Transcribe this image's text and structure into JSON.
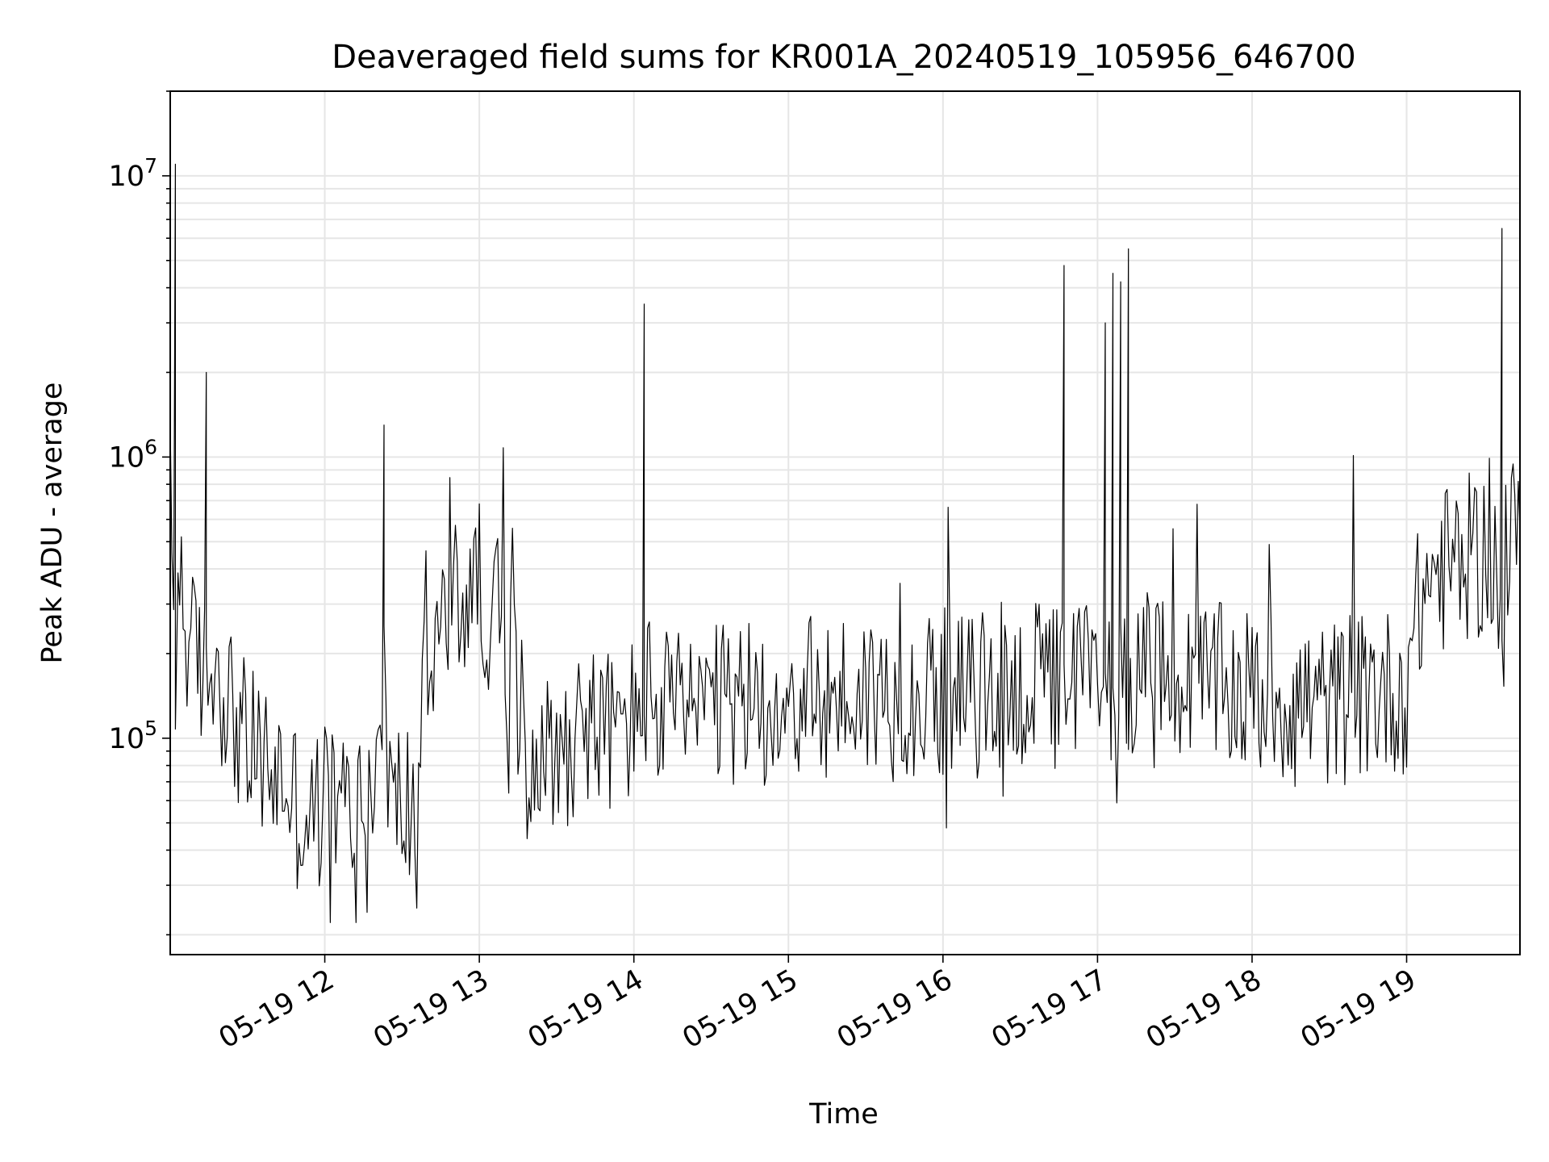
{
  "chart_data": {
    "type": "line",
    "title": "Deaveraged field sums for KR001A_20240519_105956_646700",
    "xlabel": "Time",
    "ylabel": "Peak ADU - average",
    "y_scale": "log",
    "grid": true,
    "ylim": [
      17000,
      20000000
    ],
    "xlim": [
      "2024-05-19 11:00",
      "2024-05-19 19:44"
    ],
    "x_tick_values": [
      "2024-05-19 12:00",
      "2024-05-19 13:00",
      "2024-05-19 14:00",
      "2024-05-19 15:00",
      "2024-05-19 16:00",
      "2024-05-19 17:00",
      "2024-05-19 18:00",
      "2024-05-19 19:00"
    ],
    "x_tick_labels": [
      "05-19 12",
      "05-19 13",
      "05-19 14",
      "05-19 15",
      "05-19 16",
      "05-19 17",
      "05-19 18",
      "05-19 19"
    ],
    "y_tick_values": [
      100000,
      1000000,
      10000000
    ],
    "y_tick_labels": [
      {
        "base": "10",
        "exp": "5"
      },
      {
        "base": "10",
        "exp": "6"
      },
      {
        "base": "10",
        "exp": "7"
      }
    ],
    "line_color": "#000000",
    "series": [
      {
        "x": [
          "2024-05-19 11:00",
          "2024-05-19 11:02",
          "2024-05-19 11:03",
          "2024-05-19 11:05",
          "2024-05-19 11:08",
          "2024-05-19 11:12",
          "2024-05-19 11:14",
          "2024-05-19 11:16",
          "2024-05-19 11:20",
          "2024-05-19 11:25",
          "2024-05-19 11:30",
          "2024-05-19 11:35",
          "2024-05-19 11:40",
          "2024-05-19 11:45",
          "2024-05-19 11:50",
          "2024-05-19 11:55",
          "2024-05-19 12:00",
          "2024-05-19 12:05",
          "2024-05-19 12:10",
          "2024-05-19 12:15",
          "2024-05-19 12:20",
          "2024-05-19 12:23",
          "2024-05-19 12:26",
          "2024-05-19 12:30",
          "2024-05-19 12:35",
          "2024-05-19 12:40",
          "2024-05-19 12:45",
          "2024-05-19 12:50",
          "2024-05-19 12:55",
          "2024-05-19 13:00",
          "2024-05-19 13:05",
          "2024-05-19 13:10",
          "2024-05-19 13:15",
          "2024-05-19 13:20",
          "2024-05-19 13:25",
          "2024-05-19 13:30",
          "2024-05-19 13:35",
          "2024-05-19 13:40",
          "2024-05-19 13:45",
          "2024-05-19 13:50",
          "2024-05-19 13:55",
          "2024-05-19 14:00",
          "2024-05-19 14:04",
          "2024-05-19 14:10",
          "2024-05-19 14:20",
          "2024-05-19 14:30",
          "2024-05-19 14:40",
          "2024-05-19 14:50",
          "2024-05-19 15:00",
          "2024-05-19 15:10",
          "2024-05-19 15:20",
          "2024-05-19 15:30",
          "2024-05-19 15:40",
          "2024-05-19 15:50",
          "2024-05-19 16:00",
          "2024-05-19 16:10",
          "2024-05-19 16:20",
          "2024-05-19 16:30",
          "2024-05-19 16:40",
          "2024-05-19 16:47",
          "2024-05-19 16:50",
          "2024-05-19 16:55",
          "2024-05-19 17:00",
          "2024-05-19 17:03",
          "2024-05-19 17:06",
          "2024-05-19 17:09",
          "2024-05-19 17:12",
          "2024-05-19 17:15",
          "2024-05-19 17:20",
          "2024-05-19 17:30",
          "2024-05-19 17:40",
          "2024-05-19 17:50",
          "2024-05-19 18:00",
          "2024-05-19 18:10",
          "2024-05-19 18:20",
          "2024-05-19 18:30",
          "2024-05-19 18:40",
          "2024-05-19 18:50",
          "2024-05-19 19:00",
          "2024-05-19 19:05",
          "2024-05-19 19:10",
          "2024-05-19 19:15",
          "2024-05-19 19:20",
          "2024-05-19 19:25",
          "2024-05-19 19:30",
          "2024-05-19 19:35",
          "2024-05-19 19:37",
          "2024-05-19 19:40",
          "2024-05-19 19:44"
        ],
        "y": [
          700000,
          11000000,
          450000,
          300000,
          200000,
          180000,
          2000000,
          200000,
          160000,
          120000,
          90000,
          85000,
          75000,
          70000,
          55000,
          50000,
          60000,
          58000,
          55000,
          60000,
          65000,
          1300000,
          60000,
          58000,
          60000,
          180000,
          250000,
          300000,
          320000,
          350000,
          280000,
          220000,
          130000,
          100000,
          90000,
          85000,
          100000,
          120000,
          110000,
          105000,
          110000,
          115000,
          3500000,
          120000,
          130000,
          125000,
          130000,
          135000,
          140000,
          135000,
          140000,
          145000,
          140000,
          145000,
          145000,
          140000,
          145000,
          150000,
          150000,
          4800000,
          150000,
          160000,
          200000,
          3000000,
          4500000,
          4200000,
          5500000,
          200000,
          160000,
          150000,
          155000,
          150000,
          145000,
          140000,
          135000,
          130000,
          140000,
          145000,
          150000,
          300000,
          380000,
          400000,
          420000,
          440000,
          450000,
          470000,
          6500000,
          500000,
          550000
        ]
      }
    ]
  }
}
